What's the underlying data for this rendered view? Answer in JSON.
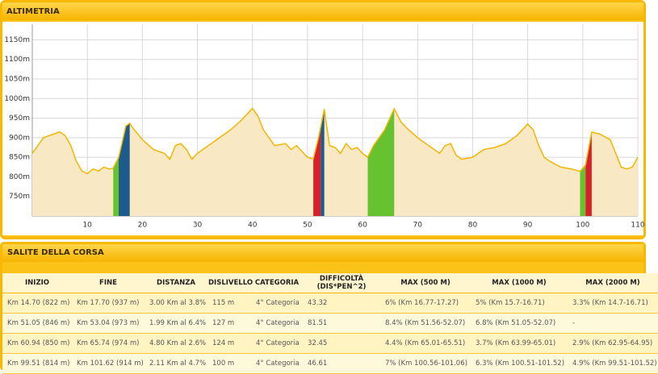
{
  "header": {
    "title": "ALTIMETRIA"
  },
  "chart_data": {
    "type": "area",
    "x": [
      0,
      2,
      4,
      5,
      6,
      7,
      8,
      9,
      10,
      11,
      12,
      13,
      14,
      14.7,
      15.7,
      17,
      17.7,
      18,
      20,
      22,
      24,
      25,
      26,
      27,
      28,
      29,
      30,
      32,
      34,
      36,
      38,
      40,
      41,
      42,
      44,
      46,
      47,
      48,
      50,
      51.05,
      52,
      53.04,
      54,
      55,
      56,
      57,
      58,
      59,
      60,
      60.94,
      62,
      64,
      65.74,
      67,
      68,
      70,
      72,
      74,
      75,
      76,
      77,
      78,
      80,
      82,
      84,
      86,
      88,
      90,
      91,
      92,
      93,
      94,
      96,
      98,
      99.51,
      100.5,
      101.62,
      103,
      105,
      106,
      107,
      108,
      109,
      110
    ],
    "series": [
      {
        "color": "#f2b600",
        "fill": "#f9e8c4",
        "values": [
          860,
          900,
          910,
          915,
          905,
          880,
          840,
          815,
          808,
          820,
          815,
          825,
          820,
          822,
          850,
          930,
          937,
          930,
          895,
          870,
          860,
          845,
          880,
          885,
          870,
          845,
          860,
          880,
          900,
          920,
          945,
          975,
          955,
          920,
          880,
          885,
          870,
          880,
          850,
          846,
          900,
          973,
          880,
          875,
          860,
          885,
          870,
          875,
          860,
          850,
          880,
          920,
          974,
          940,
          925,
          900,
          880,
          860,
          880,
          885,
          855,
          845,
          850,
          870,
          875,
          885,
          905,
          935,
          920,
          880,
          850,
          840,
          825,
          820,
          814,
          830,
          914,
          910,
          895,
          860,
          825,
          820,
          825,
          850
        ]
      }
    ],
    "segments": [
      {
        "from": 14.7,
        "to": 15.7,
        "color": "#66c22e"
      },
      {
        "from": 15.7,
        "to": 17.7,
        "color": "#1d5b8c"
      },
      {
        "from": 51.05,
        "to": 52.4,
        "color": "#d8202a"
      },
      {
        "from": 52.4,
        "to": 53.04,
        "color": "#1d5b8c"
      },
      {
        "from": 60.94,
        "to": 65.74,
        "color": "#66c22e"
      },
      {
        "from": 99.51,
        "to": 100.5,
        "color": "#66c22e"
      },
      {
        "from": 100.5,
        "to": 101.62,
        "color": "#d8202a"
      }
    ],
    "xlim": [
      0,
      110
    ],
    "xticks": [
      10,
      20,
      30,
      40,
      50,
      60,
      70,
      80,
      90,
      100,
      110
    ],
    "ylim": [
      700,
      1190
    ],
    "yticks": [
      {
        "value": 750,
        "label": "750m"
      },
      {
        "value": 800,
        "label": "800m"
      },
      {
        "value": 850,
        "label": "850m"
      },
      {
        "value": 900,
        "label": "900m"
      },
      {
        "value": 950,
        "label": "950m"
      },
      {
        "value": 1000,
        "label": "1000m"
      },
      {
        "value": 1050,
        "label": "1050m"
      },
      {
        "value": 1100,
        "label": "1100m"
      },
      {
        "value": 1150,
        "label": "1150m"
      }
    ],
    "grid": true
  },
  "table": {
    "title": "SALITE DELLA CORSA",
    "columns": [
      "INIZIO",
      "FINE",
      "DISTANZA",
      "DISLIVELLO",
      "CATEGORIA",
      "DIFFICOLTÀ (DIS*PEN^2)",
      "MAX (500 M)",
      "MAX (1000 M)",
      "MAX (2000 M)"
    ],
    "rows": [
      [
        "Km 14.70 (822 m)",
        "Km 17.70 (937 m)",
        "3.00 Km al 3.8%",
        "115 m",
        "4° Categoria",
        "43.32",
        "6% (Km 16.77-17.27)",
        "5% (Km 15.7-16.71)",
        "3.3% (Km 14.7-16.71)"
      ],
      [
        "Km 51.05 (846 m)",
        "Km 53.04 (973 m)",
        "1.99 Km al 6.4%",
        "127 m",
        "4° Categoria",
        "81.51",
        "8.4% (Km 51.56-52.07)",
        "6.8% (Km 51.05-52.07)",
        "-"
      ],
      [
        "Km 60.94 (850 m)",
        "Km 65.74 (974 m)",
        "4.80 Km al 2.6%",
        "124 m",
        "4° Categoria",
        "32.45",
        "4.4% (Km 65.01-65.51)",
        "3.7% (Km 63.99-65.01)",
        "2.9% (Km 62.95-64.95)"
      ],
      [
        "Km 99.51 (814 m)",
        "Km 101.62 (914 m)",
        "2.11 Km al 4.7%",
        "100 m",
        "4° Categoria",
        "46.61",
        "7% (Km 100.56-101.06)",
        "6.3% (Km 100.51-101.52)",
        "4.9% (Km 99.51-101.52)"
      ]
    ]
  }
}
